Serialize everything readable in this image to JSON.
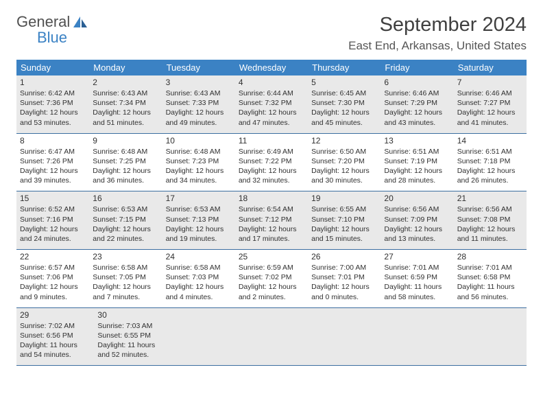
{
  "logo": {
    "line1": "General",
    "line2": "Blue"
  },
  "title": "September 2024",
  "location": "East End, Arkansas, United States",
  "weekdays": [
    "Sunday",
    "Monday",
    "Tuesday",
    "Wednesday",
    "Thursday",
    "Friday",
    "Saturday"
  ],
  "colors": {
    "header_bg": "#3b82c4",
    "header_text": "#ffffff",
    "shaded_bg": "#e9e9e9",
    "row_divider": "#3b6da0",
    "text": "#303030",
    "logo_gray": "#505050",
    "logo_blue": "#3b82c4"
  },
  "fonts": {
    "title_size": 29,
    "location_size": 17,
    "weekday_size": 13,
    "daynum_size": 12,
    "info_size": 10.5
  },
  "weeks": [
    {
      "shaded": true,
      "days": [
        {
          "n": "1",
          "sr": "6:42 AM",
          "ss": "7:36 PM",
          "dl": "12 hours and 53 minutes."
        },
        {
          "n": "2",
          "sr": "6:43 AM",
          "ss": "7:34 PM",
          "dl": "12 hours and 51 minutes."
        },
        {
          "n": "3",
          "sr": "6:43 AM",
          "ss": "7:33 PM",
          "dl": "12 hours and 49 minutes."
        },
        {
          "n": "4",
          "sr": "6:44 AM",
          "ss": "7:32 PM",
          "dl": "12 hours and 47 minutes."
        },
        {
          "n": "5",
          "sr": "6:45 AM",
          "ss": "7:30 PM",
          "dl": "12 hours and 45 minutes."
        },
        {
          "n": "6",
          "sr": "6:46 AM",
          "ss": "7:29 PM",
          "dl": "12 hours and 43 minutes."
        },
        {
          "n": "7",
          "sr": "6:46 AM",
          "ss": "7:27 PM",
          "dl": "12 hours and 41 minutes."
        }
      ]
    },
    {
      "shaded": false,
      "days": [
        {
          "n": "8",
          "sr": "6:47 AM",
          "ss": "7:26 PM",
          "dl": "12 hours and 39 minutes."
        },
        {
          "n": "9",
          "sr": "6:48 AM",
          "ss": "7:25 PM",
          "dl": "12 hours and 36 minutes."
        },
        {
          "n": "10",
          "sr": "6:48 AM",
          "ss": "7:23 PM",
          "dl": "12 hours and 34 minutes."
        },
        {
          "n": "11",
          "sr": "6:49 AM",
          "ss": "7:22 PM",
          "dl": "12 hours and 32 minutes."
        },
        {
          "n": "12",
          "sr": "6:50 AM",
          "ss": "7:20 PM",
          "dl": "12 hours and 30 minutes."
        },
        {
          "n": "13",
          "sr": "6:51 AM",
          "ss": "7:19 PM",
          "dl": "12 hours and 28 minutes."
        },
        {
          "n": "14",
          "sr": "6:51 AM",
          "ss": "7:18 PM",
          "dl": "12 hours and 26 minutes."
        }
      ]
    },
    {
      "shaded": true,
      "days": [
        {
          "n": "15",
          "sr": "6:52 AM",
          "ss": "7:16 PM",
          "dl": "12 hours and 24 minutes."
        },
        {
          "n": "16",
          "sr": "6:53 AM",
          "ss": "7:15 PM",
          "dl": "12 hours and 22 minutes."
        },
        {
          "n": "17",
          "sr": "6:53 AM",
          "ss": "7:13 PM",
          "dl": "12 hours and 19 minutes."
        },
        {
          "n": "18",
          "sr": "6:54 AM",
          "ss": "7:12 PM",
          "dl": "12 hours and 17 minutes."
        },
        {
          "n": "19",
          "sr": "6:55 AM",
          "ss": "7:10 PM",
          "dl": "12 hours and 15 minutes."
        },
        {
          "n": "20",
          "sr": "6:56 AM",
          "ss": "7:09 PM",
          "dl": "12 hours and 13 minutes."
        },
        {
          "n": "21",
          "sr": "6:56 AM",
          "ss": "7:08 PM",
          "dl": "12 hours and 11 minutes."
        }
      ]
    },
    {
      "shaded": false,
      "days": [
        {
          "n": "22",
          "sr": "6:57 AM",
          "ss": "7:06 PM",
          "dl": "12 hours and 9 minutes."
        },
        {
          "n": "23",
          "sr": "6:58 AM",
          "ss": "7:05 PM",
          "dl": "12 hours and 7 minutes."
        },
        {
          "n": "24",
          "sr": "6:58 AM",
          "ss": "7:03 PM",
          "dl": "12 hours and 4 minutes."
        },
        {
          "n": "25",
          "sr": "6:59 AM",
          "ss": "7:02 PM",
          "dl": "12 hours and 2 minutes."
        },
        {
          "n": "26",
          "sr": "7:00 AM",
          "ss": "7:01 PM",
          "dl": "12 hours and 0 minutes."
        },
        {
          "n": "27",
          "sr": "7:01 AM",
          "ss": "6:59 PM",
          "dl": "11 hours and 58 minutes."
        },
        {
          "n": "28",
          "sr": "7:01 AM",
          "ss": "6:58 PM",
          "dl": "11 hours and 56 minutes."
        }
      ]
    },
    {
      "shaded": true,
      "days": [
        {
          "n": "29",
          "sr": "7:02 AM",
          "ss": "6:56 PM",
          "dl": "11 hours and 54 minutes."
        },
        {
          "n": "30",
          "sr": "7:03 AM",
          "ss": "6:55 PM",
          "dl": "11 hours and 52 minutes."
        },
        null,
        null,
        null,
        null,
        null
      ]
    }
  ],
  "labels": {
    "sunrise": "Sunrise: ",
    "sunset": "Sunset: ",
    "daylight": "Daylight: "
  }
}
